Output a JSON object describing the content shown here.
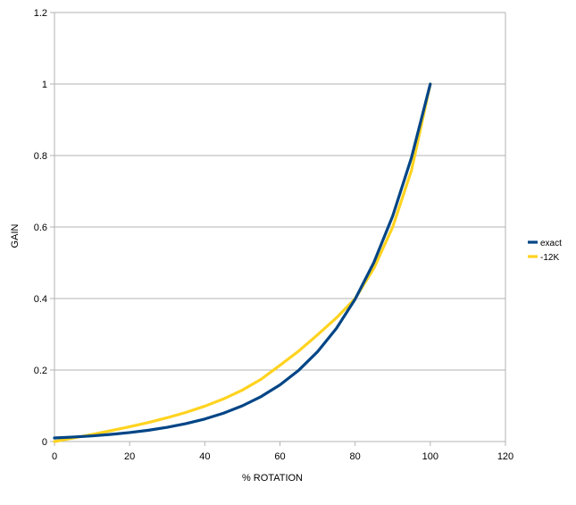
{
  "chart_data": {
    "type": "line",
    "title": "",
    "xlabel": "% ROTATION",
    "ylabel": "GAIN",
    "xlim": [
      0,
      120
    ],
    "ylim": [
      0,
      1.2
    ],
    "xticks": [
      "0",
      "20",
      "40",
      "60",
      "80",
      "100",
      "120"
    ],
    "yticks": [
      "0",
      "0.2",
      "0.4",
      "0.6",
      "0.8",
      "1",
      "1.2"
    ],
    "grid": "horizontal",
    "legend_position": "right",
    "series": [
      {
        "name": "exact",
        "color": "#004586",
        "x": [
          0,
          5,
          10,
          15,
          20,
          25,
          30,
          35,
          40,
          45,
          50,
          55,
          60,
          65,
          70,
          75,
          80,
          85,
          90,
          95,
          100
        ],
        "y": [
          0.01,
          0.0126,
          0.0158,
          0.02,
          0.0251,
          0.0316,
          0.0398,
          0.0501,
          0.0631,
          0.0794,
          0.1,
          0.1259,
          0.1585,
          0.1995,
          0.2512,
          0.3162,
          0.3981,
          0.5012,
          0.631,
          0.7943,
          1.0
        ]
      },
      {
        "name": "-12K",
        "color": "#FFD320",
        "x": [
          0,
          5,
          10,
          15,
          20,
          25,
          30,
          35,
          40,
          45,
          50,
          55,
          60,
          65,
          70,
          75,
          80,
          85,
          90,
          95,
          100
        ],
        "y": [
          0.0,
          0.0098,
          0.0198,
          0.0303,
          0.0413,
          0.0533,
          0.0666,
          0.0816,
          0.0989,
          0.1193,
          0.1439,
          0.1744,
          0.2133,
          0.2532,
          0.2985,
          0.3457,
          0.4,
          0.4848,
          0.6,
          0.7587,
          1.0
        ]
      }
    ]
  }
}
